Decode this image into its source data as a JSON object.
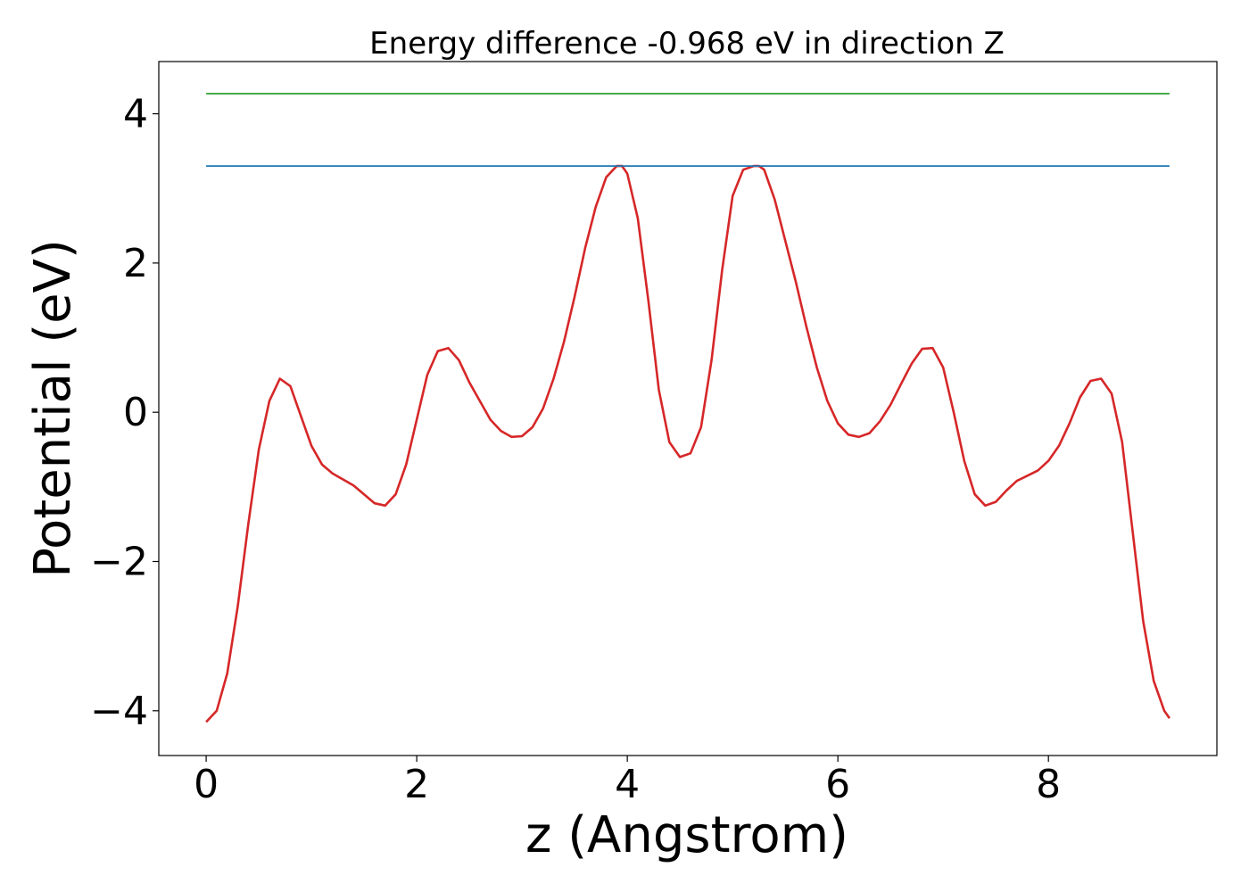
{
  "chart_data": {
    "type": "line",
    "title": "Energy difference -0.968 eV in direction Z",
    "xlabel": "z (Angstrom)",
    "ylabel": "Potential (eV)",
    "xlim": [
      -0.45,
      9.6
    ],
    "ylim": [
      -4.6,
      4.7
    ],
    "x_ticks": [
      0,
      2,
      4,
      6,
      8
    ],
    "x_tick_labels": [
      "0",
      "2",
      "4",
      "6",
      "8"
    ],
    "y_ticks": [
      -4,
      -2,
      0,
      2,
      4
    ],
    "y_tick_labels": [
      "−4",
      "−2",
      "0",
      "2",
      "4"
    ],
    "grid": false,
    "series": [
      {
        "color": "#d62728",
        "x": [
          0.0,
          0.1,
          0.2,
          0.3,
          0.4,
          0.5,
          0.6,
          0.7,
          0.8,
          0.9,
          1.0,
          1.1,
          1.2,
          1.3,
          1.4,
          1.5,
          1.6,
          1.7,
          1.8,
          1.9,
          2.0,
          2.1,
          2.2,
          2.3,
          2.4,
          2.5,
          2.6,
          2.7,
          2.8,
          2.9,
          3.0,
          3.1,
          3.2,
          3.3,
          3.4,
          3.5,
          3.6,
          3.7,
          3.8,
          3.9,
          3.95,
          4.0,
          4.1,
          4.2,
          4.3,
          4.4,
          4.5,
          4.6,
          4.7,
          4.8,
          4.9,
          5.0,
          5.1,
          5.2,
          5.25,
          5.3,
          5.4,
          5.5,
          5.6,
          5.7,
          5.8,
          5.9,
          6.0,
          6.1,
          6.2,
          6.3,
          6.4,
          6.5,
          6.6,
          6.7,
          6.8,
          6.9,
          7.0,
          7.1,
          7.2,
          7.3,
          7.4,
          7.5,
          7.6,
          7.7,
          7.8,
          7.9,
          8.0,
          8.1,
          8.2,
          8.3,
          8.4,
          8.5,
          8.6,
          8.7,
          8.8,
          8.9,
          9.0,
          9.1,
          9.15
        ],
        "y": [
          -4.15,
          -4.0,
          -3.5,
          -2.6,
          -1.5,
          -0.5,
          0.15,
          0.45,
          0.35,
          -0.05,
          -0.45,
          -0.7,
          -0.82,
          -0.9,
          -0.98,
          -1.1,
          -1.22,
          -1.25,
          -1.1,
          -0.7,
          -0.1,
          0.5,
          0.82,
          0.86,
          0.7,
          0.4,
          0.15,
          -0.1,
          -0.25,
          -0.33,
          -0.32,
          -0.2,
          0.05,
          0.45,
          0.95,
          1.55,
          2.2,
          2.75,
          3.15,
          3.3,
          3.3,
          3.2,
          2.6,
          1.5,
          0.3,
          -0.4,
          -0.6,
          -0.55,
          -0.2,
          0.7,
          1.9,
          2.9,
          3.25,
          3.3,
          3.3,
          3.25,
          2.85,
          2.3,
          1.75,
          1.15,
          0.6,
          0.15,
          -0.15,
          -0.3,
          -0.33,
          -0.28,
          -0.12,
          0.1,
          0.38,
          0.65,
          0.85,
          0.86,
          0.6,
          0.0,
          -0.65,
          -1.1,
          -1.25,
          -1.2,
          -1.05,
          -0.92,
          -0.85,
          -0.78,
          -0.65,
          -0.45,
          -0.15,
          0.2,
          0.42,
          0.45,
          0.25,
          -0.4,
          -1.6,
          -2.8,
          -3.6,
          -4.0,
          -4.1
        ]
      },
      {
        "color": "#1f77b4",
        "x": [
          0.0,
          9.15
        ],
        "y": [
          3.3,
          3.3
        ]
      },
      {
        "color": "#2ca02c",
        "x": [
          0.0,
          9.15
        ],
        "y": [
          4.27,
          4.27
        ]
      }
    ]
  }
}
